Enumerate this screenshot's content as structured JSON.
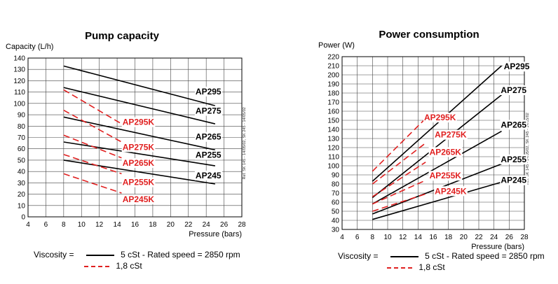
{
  "chart_data": [
    {
      "type": "line",
      "title": "Pump capacity",
      "ylabel": "Capacity (L/h)",
      "xlabel": "Pressure (bars)",
      "xlim": [
        4,
        28
      ],
      "ylim": [
        0,
        140
      ],
      "xticks": [
        4,
        6,
        8,
        10,
        12,
        14,
        16,
        18,
        20,
        22,
        24,
        26,
        28
      ],
      "yticks": [
        0,
        10,
        20,
        30,
        40,
        50,
        60,
        70,
        80,
        90,
        100,
        110,
        120,
        130,
        140
      ],
      "grid": true,
      "ref_text": "Ref. SK 145 - 14/05/02, SK 245 - 14/05/02",
      "series": [
        {
          "name": "AP295",
          "style": "solid",
          "color": "#000000",
          "x": [
            8,
            25
          ],
          "y": [
            133,
            98
          ]
        },
        {
          "name": "AP275",
          "style": "solid",
          "color": "#000000",
          "x": [
            8,
            25
          ],
          "y": [
            114,
            82
          ]
        },
        {
          "name": "AP265",
          "style": "solid",
          "color": "#000000",
          "x": [
            8,
            25
          ],
          "y": [
            88,
            59
          ]
        },
        {
          "name": "AP255",
          "style": "solid",
          "color": "#000000",
          "x": [
            8,
            25
          ],
          "y": [
            66,
            45
          ]
        },
        {
          "name": "AP245",
          "style": "solid",
          "color": "#000000",
          "x": [
            8,
            25
          ],
          "y": [
            50,
            29
          ]
        },
        {
          "name": "AP295K",
          "style": "dashed",
          "color": "#e02020",
          "x": [
            8,
            14.5
          ],
          "y": [
            112,
            82
          ]
        },
        {
          "name": "AP275K",
          "style": "dashed",
          "color": "#e02020",
          "x": [
            8,
            14.5
          ],
          "y": [
            94,
            66
          ]
        },
        {
          "name": "AP265K",
          "style": "dashed",
          "color": "#e02020",
          "x": [
            8,
            14.5
          ],
          "y": [
            72,
            52
          ]
        },
        {
          "name": "AP255K",
          "style": "dashed",
          "color": "#e02020",
          "x": [
            8,
            14.5
          ],
          "y": [
            55,
            38
          ]
        },
        {
          "name": "AP245K",
          "style": "dashed",
          "color": "#e02020",
          "x": [
            8,
            14.5
          ],
          "y": [
            38,
            21
          ]
        }
      ],
      "labels": [
        {
          "text": "AP295",
          "x": 22.8,
          "y": 108,
          "color": "#000000"
        },
        {
          "text": "AP275",
          "x": 22.8,
          "y": 91,
          "color": "#000000"
        },
        {
          "text": "AP265",
          "x": 22.8,
          "y": 68,
          "color": "#000000"
        },
        {
          "text": "AP255",
          "x": 22.8,
          "y": 52,
          "color": "#000000"
        },
        {
          "text": "AP245",
          "x": 22.8,
          "y": 34,
          "color": "#000000"
        },
        {
          "text": "AP295K",
          "x": 14.6,
          "y": 81,
          "color": "#e02020"
        },
        {
          "text": "AP275K",
          "x": 14.6,
          "y": 59,
          "color": "#e02020"
        },
        {
          "text": "AP265K",
          "x": 14.6,
          "y": 45,
          "color": "#e02020"
        },
        {
          "text": "AP255K",
          "x": 14.6,
          "y": 28,
          "color": "#e02020"
        },
        {
          "text": "AP245K",
          "x": 14.6,
          "y": 13,
          "color": "#e02020"
        }
      ]
    },
    {
      "type": "line",
      "title": "Power consumption",
      "ylabel": "Power (W)",
      "xlabel": "Pressure (bars)",
      "xlim": [
        4,
        28
      ],
      "ylim": [
        30,
        220
      ],
      "xticks": [
        4,
        6,
        8,
        10,
        12,
        14,
        16,
        18,
        20,
        22,
        24,
        26,
        28
      ],
      "yticks": [
        30,
        40,
        50,
        60,
        70,
        80,
        90,
        100,
        110,
        120,
        130,
        140,
        150,
        160,
        170,
        180,
        190,
        200,
        210,
        220
      ],
      "grid": true,
      "ref_text": "Ref. SK 145 - 14/05/02, SK 245 - 14/05/02",
      "series": [
        {
          "name": "AP295",
          "style": "solid",
          "color": "#000000",
          "x": [
            8,
            25
          ],
          "y": [
            83,
            210
          ]
        },
        {
          "name": "AP275",
          "style": "solid",
          "color": "#000000",
          "x": [
            8,
            25
          ],
          "y": [
            65,
            178
          ]
        },
        {
          "name": "AP265",
          "style": "solid",
          "color": "#000000",
          "x": [
            8,
            25
          ],
          "y": [
            58,
            138
          ]
        },
        {
          "name": "AP255",
          "style": "solid",
          "color": "#000000",
          "x": [
            8,
            25
          ],
          "y": [
            47,
            102
          ]
        },
        {
          "name": "AP245",
          "style": "solid",
          "color": "#000000",
          "x": [
            8,
            25
          ],
          "y": [
            41,
            82
          ]
        },
        {
          "name": "AP295K",
          "style": "dashed",
          "color": "#e02020",
          "x": [
            8,
            15
          ],
          "y": [
            94,
            152
          ]
        },
        {
          "name": "AP275K",
          "style": "dashed",
          "color": "#e02020",
          "x": [
            8,
            15
          ],
          "y": [
            80,
            125
          ]
        },
        {
          "name": "AP265K",
          "style": "dashed",
          "color": "#e02020",
          "x": [
            8,
            15
          ],
          "y": [
            66,
            104
          ]
        },
        {
          "name": "AP255K",
          "style": "dashed",
          "color": "#e02020",
          "x": [
            8,
            15
          ],
          "y": [
            58,
            84
          ]
        },
        {
          "name": "AP245K",
          "style": "dashed",
          "color": "#e02020",
          "x": [
            8,
            15
          ],
          "y": [
            50,
            69
          ]
        }
      ],
      "labels": [
        {
          "text": "AP295",
          "x": 25.3,
          "y": 206,
          "color": "#000000"
        },
        {
          "text": "AP275",
          "x": 24.9,
          "y": 180,
          "color": "#000000"
        },
        {
          "text": "AP265",
          "x": 24.9,
          "y": 142,
          "color": "#000000"
        },
        {
          "text": "AP255",
          "x": 24.9,
          "y": 104,
          "color": "#000000"
        },
        {
          "text": "AP245",
          "x": 24.9,
          "y": 81,
          "color": "#000000"
        },
        {
          "text": "AP295K",
          "x": 14.8,
          "y": 150,
          "color": "#e02020"
        },
        {
          "text": "AP275K",
          "x": 16.2,
          "y": 131,
          "color": "#e02020"
        },
        {
          "text": "AP265K",
          "x": 15.5,
          "y": 112,
          "color": "#e02020"
        },
        {
          "text": "AP255K",
          "x": 15.5,
          "y": 86,
          "color": "#e02020"
        },
        {
          "text": "AP245K",
          "x": 16.2,
          "y": 69,
          "color": "#e02020"
        }
      ]
    }
  ],
  "legends": [
    {
      "viscosity_label": "Viscosity =",
      "solid_value": "5 cSt",
      "rated_speed": "- Rated speed = 2850 rpm",
      "dashed_value": "1,8 cSt"
    },
    {
      "viscosity_label": "Viscosity =",
      "solid_value": "5 cSt",
      "rated_speed": "- Rated speed = 2850 rpm",
      "dashed_value": "1,8 cSt"
    }
  ]
}
